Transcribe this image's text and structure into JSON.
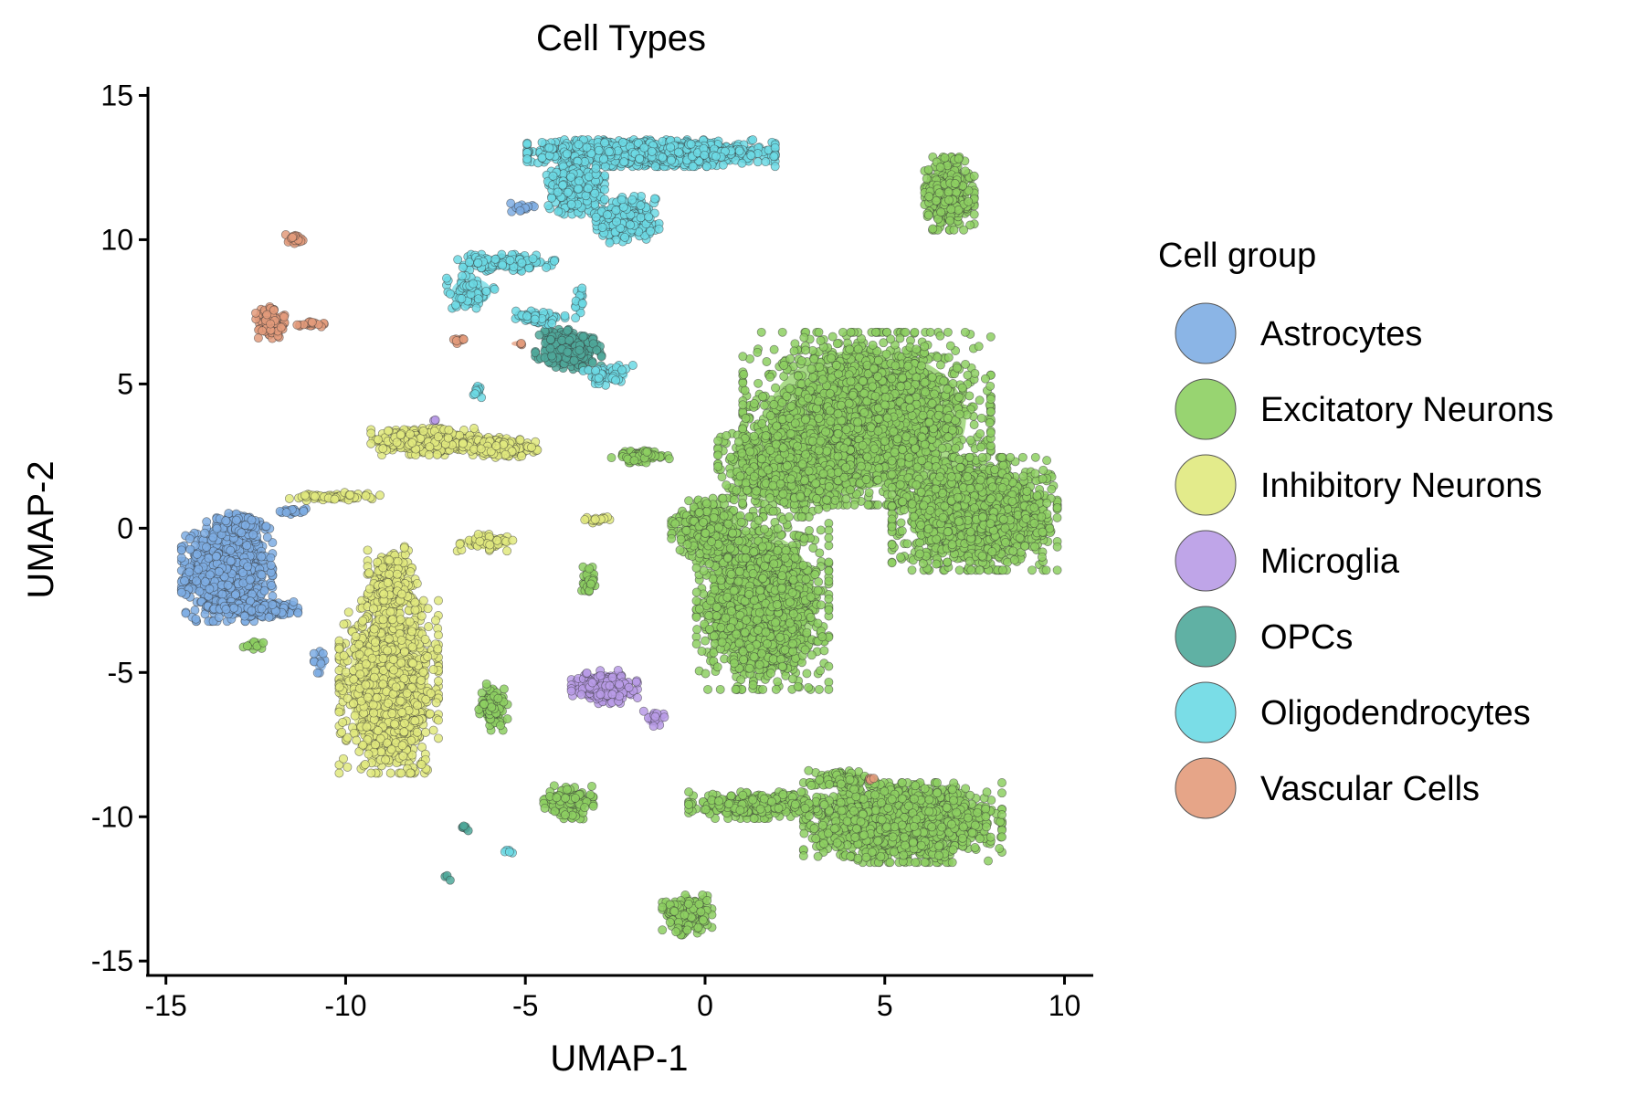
{
  "chart_data": {
    "type": "scatter",
    "title": "Cell Types",
    "xlabel": "UMAP-1",
    "ylabel": "UMAP-2",
    "xlim": [
      -15.5,
      10.8
    ],
    "ylim": [
      -15.5,
      15.3
    ],
    "xticks": [
      -15,
      -10,
      -5,
      0,
      5,
      10
    ],
    "yticks": [
      -15,
      -10,
      -5,
      0,
      5,
      10,
      15
    ],
    "xtick_labels": [
      "-15",
      "-10",
      "-5",
      "0",
      "5",
      "10"
    ],
    "ytick_labels": [
      "-15",
      "-10",
      "-5",
      "0",
      "5",
      "10",
      "15"
    ],
    "grid": false,
    "legend": {
      "title": "Cell group",
      "placement": "right",
      "entries": [
        "Astrocytes",
        "Excitatory Neurons",
        "Inhibitory Neurons",
        "Microglia",
        "OPCs",
        "Oligodendrocytes",
        "Vascular Cells"
      ]
    },
    "series": [
      {
        "name": "Astrocytes",
        "color": "#7EADE3",
        "clusters": [
          {
            "x": -13.3,
            "y": -1.5,
            "rx": 1.1,
            "ry": 1.5,
            "n": 900
          },
          {
            "x": -12.9,
            "y": 0.1,
            "rx": 0.6,
            "ry": 0.4,
            "n": 150
          },
          {
            "x": -12.3,
            "y": -2.8,
            "rx": 1.2,
            "ry": 0.25,
            "n": 160
          },
          {
            "x": -11.5,
            "y": 0.6,
            "rx": 0.4,
            "ry": 0.1,
            "n": 20
          },
          {
            "x": -10.7,
            "y": -4.6,
            "rx": 0.2,
            "ry": 0.4,
            "n": 10
          },
          {
            "x": -5.1,
            "y": 11.1,
            "rx": 0.3,
            "ry": 0.2,
            "n": 12
          }
        ]
      },
      {
        "name": "Excitatory Neurons",
        "color": "#8DCF62",
        "clusters": [
          {
            "x": 4.5,
            "y": 3.8,
            "rx": 3.0,
            "ry": 2.6,
            "n": 2200
          },
          {
            "x": 7.5,
            "y": 0.5,
            "rx": 2.0,
            "ry": 1.7,
            "n": 1500
          },
          {
            "x": 2.2,
            "y": 2.2,
            "rx": 1.6,
            "ry": 1.4,
            "n": 700
          },
          {
            "x": 1.6,
            "y": -2.6,
            "rx": 1.6,
            "ry": 2.6,
            "n": 1500
          },
          {
            "x": 0.1,
            "y": 0.0,
            "rx": 0.9,
            "ry": 0.9,
            "n": 350
          },
          {
            "x": 5.5,
            "y": -10.2,
            "rx": 2.4,
            "ry": 1.2,
            "n": 1500
          },
          {
            "x": 1.5,
            "y": -9.6,
            "rx": 1.7,
            "ry": 0.4,
            "n": 320
          },
          {
            "x": 3.8,
            "y": -8.7,
            "rx": 0.8,
            "ry": 0.3,
            "n": 100
          },
          {
            "x": -0.5,
            "y": -13.4,
            "rx": 0.6,
            "ry": 0.6,
            "n": 200
          },
          {
            "x": 6.8,
            "y": 11.6,
            "rx": 0.6,
            "ry": 1.1,
            "n": 380
          },
          {
            "x": -3.8,
            "y": -9.5,
            "rx": 0.6,
            "ry": 0.5,
            "n": 160
          },
          {
            "x": -5.9,
            "y": -6.2,
            "rx": 0.35,
            "ry": 0.7,
            "n": 110
          },
          {
            "x": -1.8,
            "y": 2.5,
            "rx": 0.7,
            "ry": 0.2,
            "n": 80
          },
          {
            "x": -3.2,
            "y": -1.8,
            "rx": 0.2,
            "ry": 0.4,
            "n": 30
          },
          {
            "x": -12.5,
            "y": -4.0,
            "rx": 0.3,
            "ry": 0.2,
            "n": 12
          }
        ]
      },
      {
        "name": "Inhibitory Neurons",
        "color": "#E0E97E",
        "clusters": [
          {
            "x": -8.8,
            "y": -5.5,
            "rx": 1.2,
            "ry": 2.6,
            "n": 1300
          },
          {
            "x": -8.7,
            "y": -1.9,
            "rx": 0.6,
            "ry": 1.1,
            "n": 250
          },
          {
            "x": -7.8,
            "y": 3.0,
            "rx": 1.3,
            "ry": 0.4,
            "n": 500
          },
          {
            "x": -5.7,
            "y": 2.8,
            "rx": 0.9,
            "ry": 0.3,
            "n": 220
          },
          {
            "x": -10.3,
            "y": 1.1,
            "rx": 1.1,
            "ry": 0.12,
            "n": 70
          },
          {
            "x": -6.1,
            "y": -0.5,
            "rx": 0.8,
            "ry": 0.25,
            "n": 60
          },
          {
            "x": -3.0,
            "y": 0.3,
            "rx": 0.3,
            "ry": 0.1,
            "n": 18
          }
        ]
      },
      {
        "name": "Microglia",
        "color": "#B89BE6",
        "clusters": [
          {
            "x": -2.8,
            "y": -5.5,
            "rx": 0.8,
            "ry": 0.5,
            "n": 260
          },
          {
            "x": -1.4,
            "y": -6.6,
            "rx": 0.3,
            "ry": 0.3,
            "n": 15
          },
          {
            "x": -7.5,
            "y": 3.8,
            "rx": 0.1,
            "ry": 0.1,
            "n": 3
          }
        ]
      },
      {
        "name": "OPCs",
        "color": "#4FA89A",
        "clusters": [
          {
            "x": -3.8,
            "y": 6.2,
            "rx": 0.8,
            "ry": 0.6,
            "n": 320
          },
          {
            "x": -6.7,
            "y": -10.4,
            "rx": 0.15,
            "ry": 0.1,
            "n": 6
          },
          {
            "x": -7.2,
            "y": -12.1,
            "rx": 0.1,
            "ry": 0.1,
            "n": 3
          }
        ]
      },
      {
        "name": "Oligodendrocytes",
        "color": "#6CD9E4",
        "clusters": [
          {
            "x": -1.5,
            "y": 13.0,
            "rx": 3.0,
            "ry": 0.4,
            "n": 1200
          },
          {
            "x": -3.6,
            "y": 11.8,
            "rx": 0.7,
            "ry": 0.8,
            "n": 350
          },
          {
            "x": -2.2,
            "y": 10.7,
            "rx": 0.8,
            "ry": 0.7,
            "n": 260
          },
          {
            "x": -5.5,
            "y": 9.2,
            "rx": 1.2,
            "ry": 0.25,
            "n": 140
          },
          {
            "x": -6.5,
            "y": 8.2,
            "rx": 0.6,
            "ry": 0.5,
            "n": 90
          },
          {
            "x": -4.7,
            "y": 7.3,
            "rx": 0.7,
            "ry": 0.2,
            "n": 70
          },
          {
            "x": -2.7,
            "y": 5.3,
            "rx": 0.6,
            "ry": 0.3,
            "n": 50
          },
          {
            "x": -6.3,
            "y": 4.8,
            "rx": 0.15,
            "ry": 0.25,
            "n": 12
          },
          {
            "x": -3.5,
            "y": 7.8,
            "rx": 0.15,
            "ry": 0.5,
            "n": 15
          },
          {
            "x": -5.4,
            "y": -11.2,
            "rx": 0.15,
            "ry": 0.1,
            "n": 5
          }
        ]
      },
      {
        "name": "Vascular Cells",
        "color": "#E39B7B",
        "clusters": [
          {
            "x": -12.1,
            "y": 7.1,
            "rx": 0.35,
            "ry": 0.5,
            "n": 110
          },
          {
            "x": -11.4,
            "y": 10.0,
            "rx": 0.25,
            "ry": 0.15,
            "n": 25
          },
          {
            "x": -11.0,
            "y": 7.1,
            "rx": 0.35,
            "ry": 0.1,
            "n": 20
          },
          {
            "x": -6.8,
            "y": 6.5,
            "rx": 0.2,
            "ry": 0.1,
            "n": 10
          },
          {
            "x": 4.6,
            "y": -8.7,
            "rx": 0.1,
            "ry": 0.1,
            "n": 5
          },
          {
            "x": -5.2,
            "y": 6.4,
            "rx": 0.2,
            "ry": 0.1,
            "n": 3
          }
        ]
      }
    ]
  }
}
